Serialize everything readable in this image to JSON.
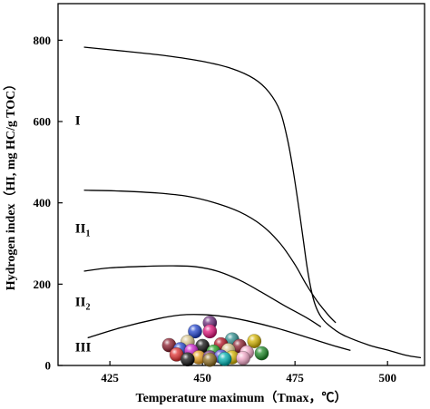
{
  "chart_data": {
    "type": "line",
    "xlabel": "Temperature maximum（Tmax，℃）",
    "ylabel": "Hydrogen index（HI, mg HC/g TOC）",
    "xlim": [
      411,
      510
    ],
    "ylim": [
      0,
      890
    ],
    "x_ticks": [
      "425",
      "450",
      "475",
      "500"
    ],
    "x_tick_values": [
      425,
      450,
      475,
      500
    ],
    "y_ticks": [
      "0",
      "200",
      "400",
      "600",
      "800"
    ],
    "y_tick_values": [
      0,
      200,
      400,
      600,
      800
    ],
    "grid": false,
    "zone_labels": [
      {
        "main": "I",
        "sub": "",
        "x": 415.6,
        "y": 592
      },
      {
        "main": "II",
        "sub": "1",
        "x": 415.6,
        "y": 327
      },
      {
        "main": "II",
        "sub": "2",
        "x": 415.6,
        "y": 146
      },
      {
        "main": "III",
        "sub": "",
        "x": 415.6,
        "y": 35
      }
    ],
    "series": [
      {
        "points": [
          [
            418,
            783
          ],
          [
            430,
            772
          ],
          [
            440,
            762
          ],
          [
            450,
            748
          ],
          [
            458,
            730
          ],
          [
            464,
            705
          ],
          [
            468,
            672
          ],
          [
            471,
            625
          ],
          [
            473,
            555
          ],
          [
            474.5,
            480
          ],
          [
            476,
            390
          ],
          [
            477.3,
            305
          ],
          [
            478.3,
            240
          ],
          [
            479.4,
            185
          ],
          [
            480.5,
            148
          ],
          [
            482,
            120
          ],
          [
            484,
            100
          ],
          [
            488,
            75
          ],
          [
            495,
            50
          ],
          [
            500,
            38
          ],
          [
            505,
            25
          ],
          [
            509,
            19
          ]
        ]
      },
      {
        "points": [
          [
            418,
            431
          ],
          [
            428,
            429
          ],
          [
            438,
            424
          ],
          [
            446,
            416
          ],
          [
            453,
            401
          ],
          [
            460,
            378
          ],
          [
            466,
            345
          ],
          [
            471,
            300
          ],
          [
            475,
            248
          ],
          [
            478,
            200
          ],
          [
            481,
            158
          ],
          [
            484,
            124
          ],
          [
            486,
            105
          ]
        ]
      },
      {
        "points": [
          [
            418,
            232
          ],
          [
            425,
            240
          ],
          [
            435,
            244
          ],
          [
            442,
            245
          ],
          [
            448,
            243
          ],
          [
            454,
            232
          ],
          [
            460,
            210
          ],
          [
            466,
            180
          ],
          [
            472,
            148
          ],
          [
            478,
            118
          ],
          [
            482,
            95
          ]
        ]
      },
      {
        "points": [
          [
            419,
            68
          ],
          [
            428,
            93
          ],
          [
            438,
            115
          ],
          [
            444,
            124
          ],
          [
            450,
            125
          ],
          [
            456,
            120
          ],
          [
            462,
            110
          ],
          [
            470,
            92
          ],
          [
            478,
            70
          ],
          [
            485,
            50
          ],
          [
            490,
            37
          ]
        ]
      }
    ],
    "scatter": {
      "points": [
        {
          "x": 452,
          "y": 105,
          "color": "#6a2a7a"
        },
        {
          "x": 448,
          "y": 84,
          "color": "#2244cc"
        },
        {
          "x": 452,
          "y": 84,
          "color": "#e0147a"
        },
        {
          "x": 458,
          "y": 64,
          "color": "#2f8f8f"
        },
        {
          "x": 464,
          "y": 60,
          "color": "#d4b400"
        },
        {
          "x": 441,
          "y": 50,
          "color": "#8b1e2e"
        },
        {
          "x": 446,
          "y": 58,
          "color": "#d8c58a"
        },
        {
          "x": 450,
          "y": 48,
          "color": "#111111"
        },
        {
          "x": 455,
          "y": 52,
          "color": "#b01020"
        },
        {
          "x": 460,
          "y": 48,
          "color": "#8b1e2e"
        },
        {
          "x": 444,
          "y": 40,
          "color": "#2244cc"
        },
        {
          "x": 447,
          "y": 36,
          "color": "#cc22cc"
        },
        {
          "x": 453,
          "y": 34,
          "color": "#22a022"
        },
        {
          "x": 457,
          "y": 38,
          "color": "#d8c58a"
        },
        {
          "x": 462,
          "y": 32,
          "color": "#f2a8c8"
        },
        {
          "x": 466,
          "y": 30,
          "color": "#1e8a28"
        },
        {
          "x": 443,
          "y": 27,
          "color": "#e03030"
        },
        {
          "x": 449,
          "y": 20,
          "color": "#e8a020"
        },
        {
          "x": 452,
          "y": 20,
          "color": "#6a2a7a"
        },
        {
          "x": 455,
          "y": 22,
          "color": "#4a4ad0"
        },
        {
          "x": 458,
          "y": 20,
          "color": "#d4b400"
        },
        {
          "x": 461,
          "y": 18,
          "color": "#f2a8c8"
        },
        {
          "x": 446,
          "y": 15,
          "color": "#111111"
        },
        {
          "x": 452,
          "y": 14,
          "color": "#8b6b20"
        },
        {
          "x": 456,
          "y": 16,
          "color": "#00b0b0"
        }
      ]
    }
  }
}
